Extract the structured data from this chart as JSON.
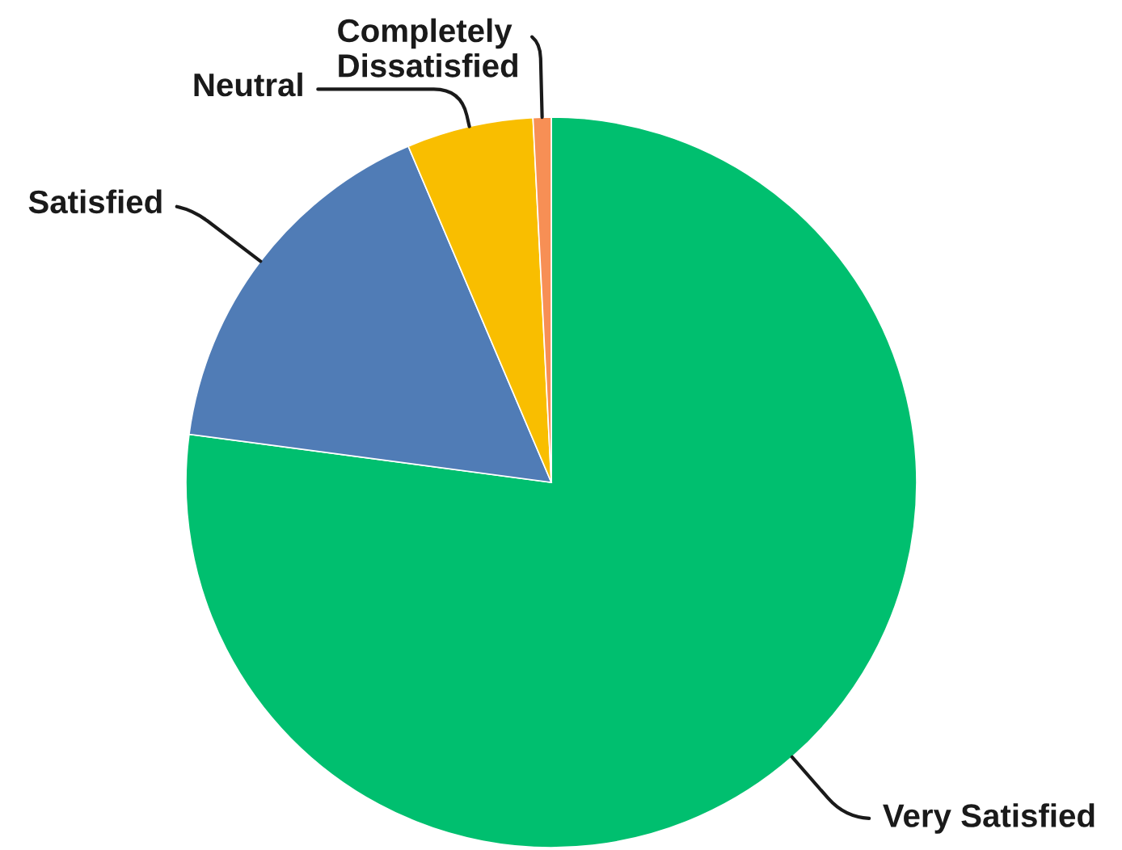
{
  "chart_data": {
    "type": "pie",
    "categories": [
      "Very Satisfied",
      "Satisfied",
      "Neutral",
      "Completely\nDissatisfied"
    ],
    "values": [
      77.1,
      16.5,
      5.6,
      0.8
    ],
    "colors": [
      "#00bf6f",
      "#507cb6",
      "#f9be00",
      "#f78f55"
    ]
  }
}
